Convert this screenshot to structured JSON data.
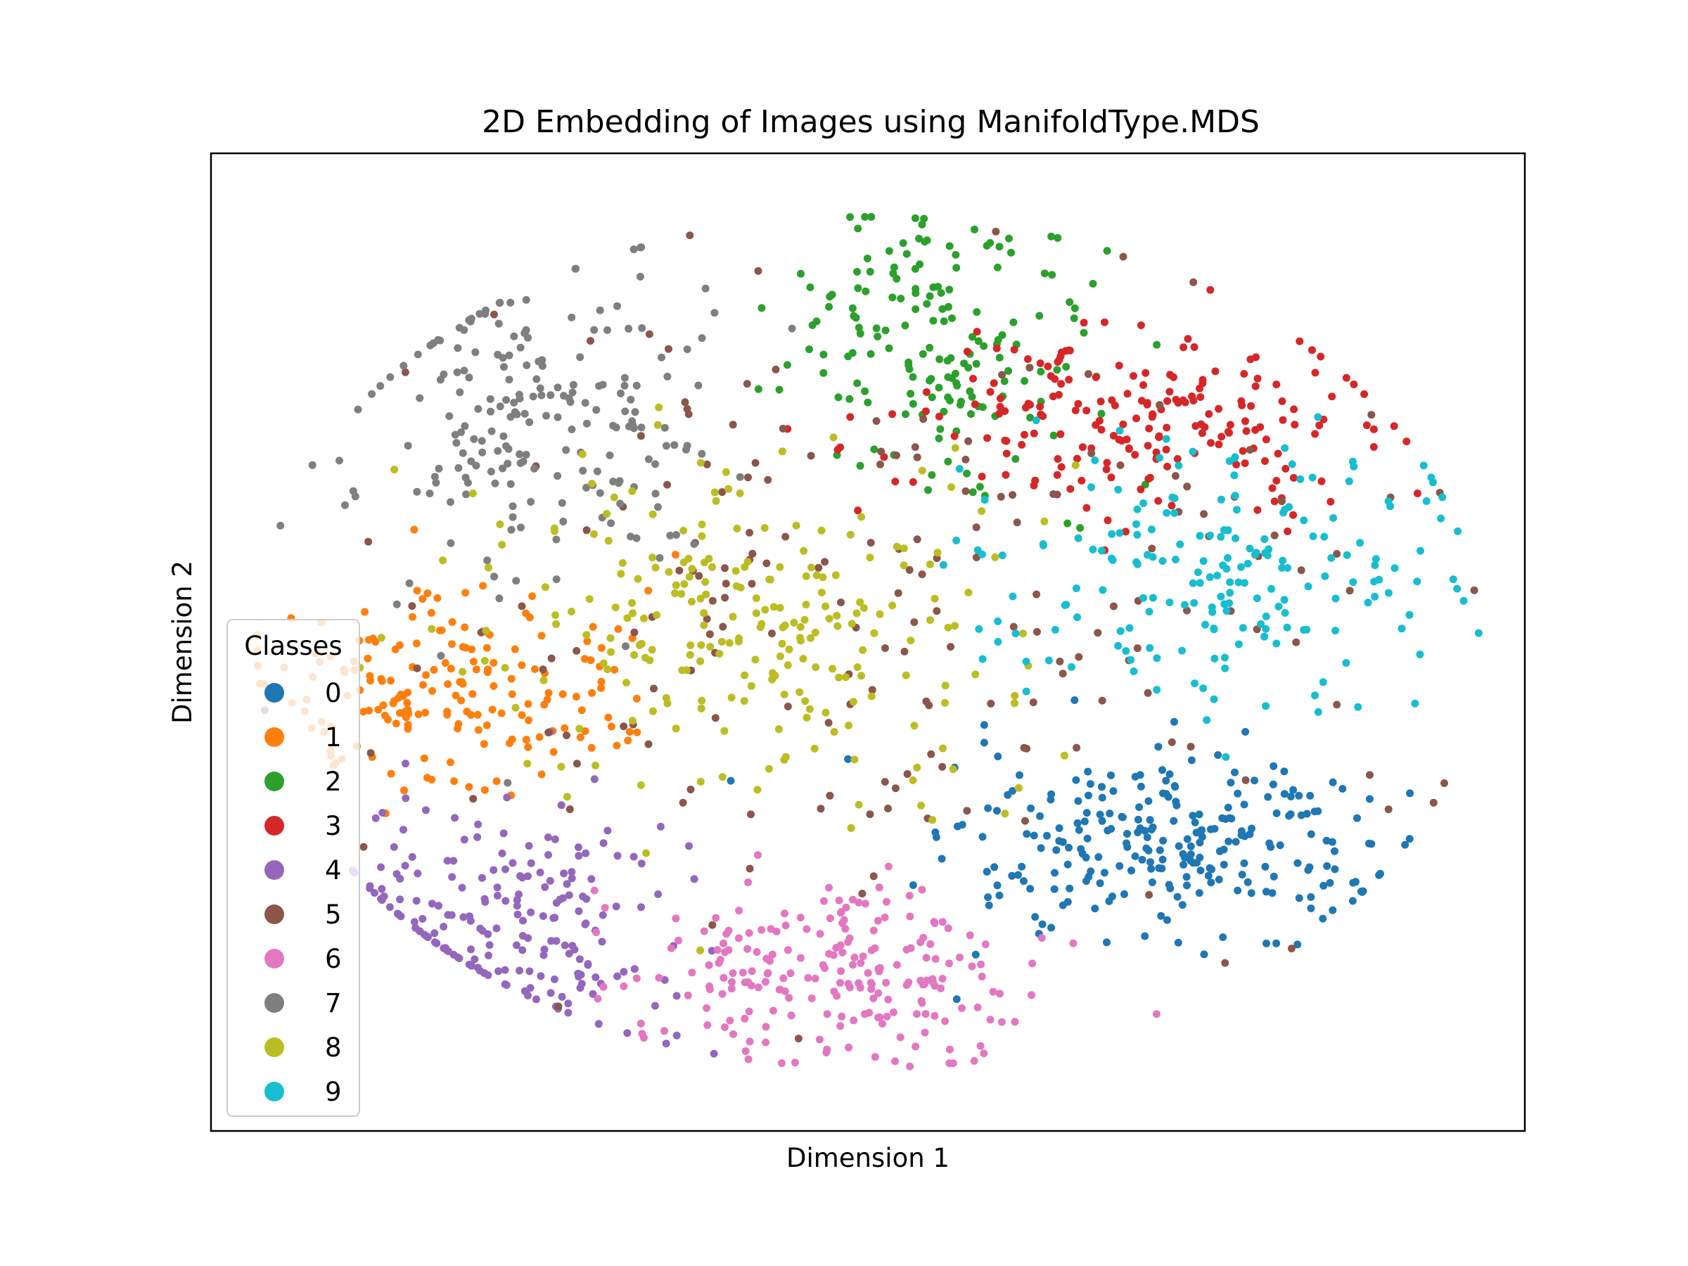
{
  "chart_data": {
    "type": "scatter",
    "title": "2D Embedding of Images using ManifoldType.MDS",
    "xlabel": "Dimension 1",
    "ylabel": "Dimension 2",
    "xlim": [
      -1.0,
      1.0
    ],
    "ylim": [
      -1.0,
      1.0
    ],
    "xticks": false,
    "yticks": false,
    "grid": false,
    "legend": {
      "title": "Classes",
      "position": "center-left, lower"
    },
    "series": [
      {
        "name": "0",
        "color": "#1f77b4",
        "cluster": {
          "center": [
            0.47,
            -0.43
          ],
          "spread": [
            0.17,
            0.1
          ],
          "n": 260
        }
      },
      {
        "name": "1",
        "color": "#ff7f0e",
        "cluster": {
          "center": [
            -0.64,
            -0.1
          ],
          "spread": [
            0.14,
            0.1
          ],
          "n": 190
        }
      },
      {
        "name": "2",
        "color": "#2ca02c",
        "cluster": {
          "center": [
            0.1,
            0.62
          ],
          "spread": [
            0.12,
            0.16
          ],
          "n": 170
        }
      },
      {
        "name": "3",
        "color": "#d62728",
        "cluster": {
          "center": [
            0.4,
            0.45
          ],
          "spread": [
            0.18,
            0.09
          ],
          "n": 210
        }
      },
      {
        "name": "4",
        "color": "#9467bd",
        "cluster": {
          "center": [
            -0.52,
            -0.55
          ],
          "spread": [
            0.13,
            0.13
          ],
          "n": 200
        }
      },
      {
        "name": "5",
        "color": "#8c564b",
        "cluster": {
          "center": [
            0.0,
            0.1
          ],
          "spread": [
            0.38,
            0.35
          ],
          "n": 190
        }
      },
      {
        "name": "6",
        "color": "#e377c2",
        "cluster": {
          "center": [
            -0.06,
            -0.67
          ],
          "spread": [
            0.15,
            0.1
          ],
          "n": 220
        }
      },
      {
        "name": "7",
        "color": "#7f7f7f",
        "cluster": {
          "center": [
            -0.51,
            0.45
          ],
          "spread": [
            0.14,
            0.18
          ],
          "n": 210
        }
      },
      {
        "name": "8",
        "color": "#bcbd22",
        "cluster": {
          "center": [
            -0.18,
            0.05
          ],
          "spread": [
            0.2,
            0.17
          ],
          "n": 240
        }
      },
      {
        "name": "9",
        "color": "#17becf",
        "cluster": {
          "center": [
            0.55,
            0.14
          ],
          "spread": [
            0.17,
            0.14
          ],
          "n": 200
        }
      }
    ]
  }
}
